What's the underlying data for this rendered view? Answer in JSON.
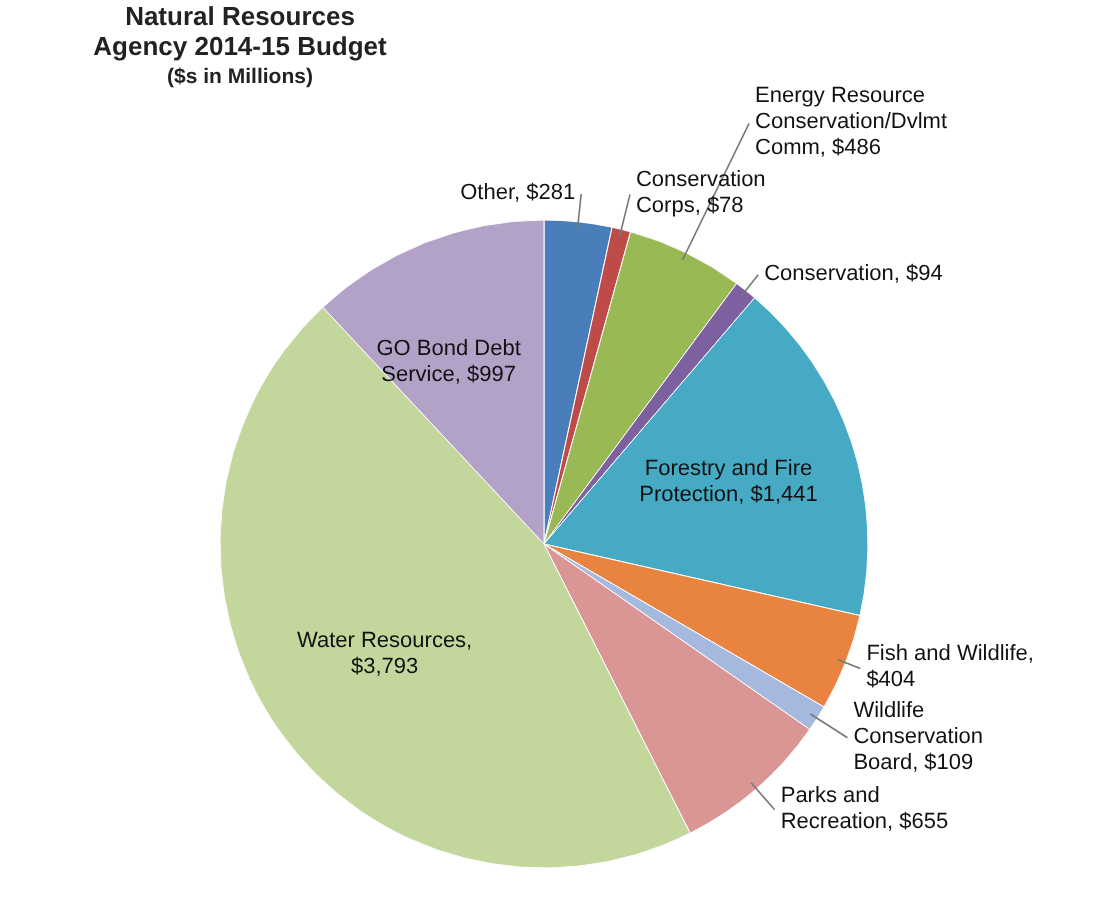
{
  "chart_data": {
    "type": "pie",
    "title": "Natural Resources Agency 2014-15 Budget",
    "subtitle": "($s in Millions)",
    "categories": [
      "Other, $281",
      "Conservation Corps, $78",
      "Energy Resource Conservation/Dvlmt Comm, $486",
      "Conservation, $94",
      "Forestry and Fire Protection, $1,441",
      "Fish and Wildlife, $404",
      "Wildlife Conservation Board, $109",
      "Parks and Recreation, $655",
      "Water Resources, $3,793",
      "GO Bond Debt Service, $997"
    ],
    "values": [
      281,
      78,
      486,
      94,
      1441,
      404,
      109,
      655,
      3793,
      997
    ],
    "colors": [
      "#4a7ebb",
      "#be4b48",
      "#98b954",
      "#7d60a0",
      "#46aac5",
      "#e8843f",
      "#a5b9df",
      "#d99694",
      "#c3d69b",
      "#b3a2c7"
    ]
  }
}
